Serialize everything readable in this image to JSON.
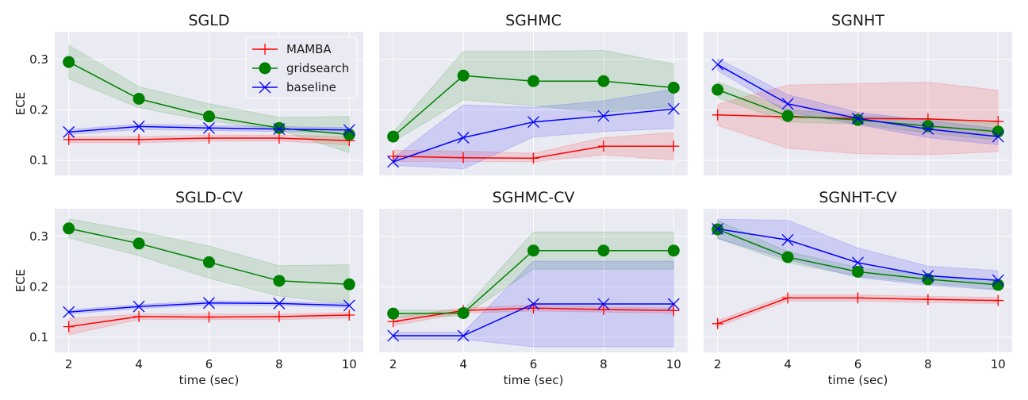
{
  "figure": {
    "xticks": [
      2,
      4,
      6,
      8,
      10
    ],
    "yticks": [
      0.1,
      0.2,
      0.3
    ],
    "ylim": [
      0.07,
      0.355
    ],
    "xlim": [
      1.6,
      10.4
    ],
    "xlabel": "time (sec)",
    "ylabel": "ECE",
    "legend": [
      "MAMBA",
      "gridsearch",
      "baseline"
    ],
    "legend_placement": "top-right of first panel",
    "colors": {
      "MAMBA": "#ff0000",
      "gridsearch": "#008000",
      "baseline": "#0000ff",
      "panel_bg": "#eaeaf2",
      "grid": "#ffffff"
    }
  },
  "chart_data": [
    {
      "type": "line",
      "title": "SGLD",
      "x": [
        2,
        4,
        6,
        8,
        10
      ],
      "series": [
        {
          "name": "MAMBA",
          "values": [
            0.141,
            0.141,
            0.144,
            0.144,
            0.139
          ],
          "band_low": [
            0.135,
            0.135,
            0.138,
            0.138,
            0.131
          ],
          "band_high": [
            0.147,
            0.147,
            0.15,
            0.15,
            0.147
          ]
        },
        {
          "name": "gridsearch",
          "values": [
            0.295,
            0.222,
            0.187,
            0.164,
            0.151
          ],
          "band_low": [
            0.262,
            0.204,
            0.178,
            0.16,
            0.115
          ],
          "band_high": [
            0.328,
            0.246,
            0.212,
            0.185,
            0.187
          ]
        },
        {
          "name": "baseline",
          "values": [
            0.156,
            0.167,
            0.164,
            0.162,
            0.16
          ],
          "band_low": [
            0.151,
            0.161,
            0.159,
            0.157,
            0.155
          ],
          "band_high": [
            0.161,
            0.172,
            0.169,
            0.167,
            0.165
          ]
        }
      ]
    },
    {
      "type": "line",
      "title": "SGHMC",
      "x": [
        2,
        4,
        6,
        8,
        10
      ],
      "series": [
        {
          "name": "MAMBA",
          "values": [
            0.108,
            0.105,
            0.104,
            0.128,
            0.128
          ],
          "band_low": [
            0.098,
            0.098,
            0.097,
            0.111,
            0.1
          ],
          "band_high": [
            0.12,
            0.118,
            0.114,
            0.145,
            0.155
          ]
        },
        {
          "name": "gridsearch",
          "values": [
            0.147,
            0.268,
            0.257,
            0.257,
            0.244
          ],
          "band_low": [
            0.137,
            0.22,
            0.208,
            0.195,
            0.207
          ],
          "band_high": [
            0.156,
            0.316,
            0.316,
            0.318,
            0.291
          ]
        },
        {
          "name": "baseline",
          "values": [
            0.097,
            0.145,
            0.176,
            0.188,
            0.202
          ],
          "band_low": [
            0.09,
            0.083,
            0.146,
            0.157,
            0.163
          ],
          "band_high": [
            0.104,
            0.21,
            0.205,
            0.218,
            0.241
          ]
        }
      ]
    },
    {
      "type": "line",
      "title": "SGNHT",
      "x": [
        2,
        4,
        6,
        8,
        10
      ],
      "series": [
        {
          "name": "MAMBA",
          "values": [
            0.19,
            0.186,
            0.183,
            0.182,
            0.177
          ],
          "band_low": [
            0.169,
            0.124,
            0.113,
            0.111,
            0.117
          ],
          "band_high": [
            0.211,
            0.249,
            0.252,
            0.255,
            0.239
          ]
        },
        {
          "name": "gridsearch",
          "values": [
            0.24,
            0.188,
            0.18,
            0.168,
            0.157
          ],
          "band_low": [
            0.224,
            0.176,
            0.172,
            0.154,
            0.14
          ],
          "band_high": [
            0.256,
            0.201,
            0.189,
            0.181,
            0.173
          ]
        },
        {
          "name": "baseline",
          "values": [
            0.29,
            0.212,
            0.183,
            0.162,
            0.147
          ],
          "band_low": [
            0.278,
            0.195,
            0.171,
            0.145,
            0.131
          ],
          "band_high": [
            0.302,
            0.23,
            0.195,
            0.179,
            0.163
          ]
        }
      ]
    },
    {
      "type": "line",
      "title": "SGLD-CV",
      "x": [
        2,
        4,
        6,
        8,
        10
      ],
      "series": [
        {
          "name": "MAMBA",
          "values": [
            0.121,
            0.141,
            0.14,
            0.141,
            0.144
          ],
          "band_low": [
            0.105,
            0.135,
            0.135,
            0.135,
            0.138
          ],
          "band_high": [
            0.137,
            0.146,
            0.146,
            0.146,
            0.149
          ]
        },
        {
          "name": "gridsearch",
          "values": [
            0.316,
            0.286,
            0.249,
            0.212,
            0.205
          ],
          "band_low": [
            0.297,
            0.262,
            0.217,
            0.182,
            0.166
          ],
          "band_high": [
            0.335,
            0.31,
            0.281,
            0.242,
            0.244
          ]
        },
        {
          "name": "baseline",
          "values": [
            0.15,
            0.161,
            0.168,
            0.167,
            0.163
          ],
          "band_low": [
            0.146,
            0.157,
            0.164,
            0.163,
            0.159
          ],
          "band_high": [
            0.154,
            0.165,
            0.172,
            0.171,
            0.167
          ]
        }
      ]
    },
    {
      "type": "line",
      "title": "SGHMC-CV",
      "x": [
        2,
        4,
        6,
        8,
        10
      ],
      "series": [
        {
          "name": "MAMBA",
          "values": [
            0.131,
            0.153,
            0.158,
            0.155,
            0.153
          ],
          "band_low": [
            0.123,
            0.148,
            0.152,
            0.15,
            0.148
          ],
          "band_high": [
            0.139,
            0.158,
            0.164,
            0.16,
            0.158
          ]
        },
        {
          "name": "gridsearch",
          "values": [
            0.147,
            0.148,
            0.272,
            0.272,
            0.272
          ],
          "band_low": [
            0.14,
            0.142,
            0.235,
            0.235,
            0.235
          ],
          "band_high": [
            0.154,
            0.154,
            0.309,
            0.309,
            0.309
          ]
        },
        {
          "name": "baseline",
          "values": [
            0.103,
            0.103,
            0.166,
            0.166,
            0.166
          ],
          "band_low": [
            0.096,
            0.096,
            0.081,
            0.081,
            0.081
          ],
          "band_high": [
            0.11,
            0.11,
            0.251,
            0.251,
            0.251
          ]
        }
      ]
    },
    {
      "type": "line",
      "title": "SGNHT-CV",
      "x": [
        2,
        4,
        6,
        8,
        10
      ],
      "series": [
        {
          "name": "MAMBA",
          "values": [
            0.127,
            0.178,
            0.178,
            0.175,
            0.173
          ],
          "band_low": [
            0.121,
            0.172,
            0.172,
            0.169,
            0.167
          ],
          "band_high": [
            0.133,
            0.184,
            0.184,
            0.181,
            0.179
          ]
        },
        {
          "name": "gridsearch",
          "values": [
            0.314,
            0.259,
            0.23,
            0.215,
            0.204
          ],
          "band_low": [
            0.296,
            0.248,
            0.221,
            0.207,
            0.195
          ],
          "band_high": [
            0.332,
            0.27,
            0.239,
            0.223,
            0.213
          ]
        },
        {
          "name": "baseline",
          "values": [
            0.315,
            0.293,
            0.248,
            0.222,
            0.213
          ],
          "band_low": [
            0.296,
            0.254,
            0.219,
            0.203,
            0.194
          ],
          "band_high": [
            0.334,
            0.332,
            0.277,
            0.241,
            0.232
          ]
        }
      ]
    }
  ]
}
